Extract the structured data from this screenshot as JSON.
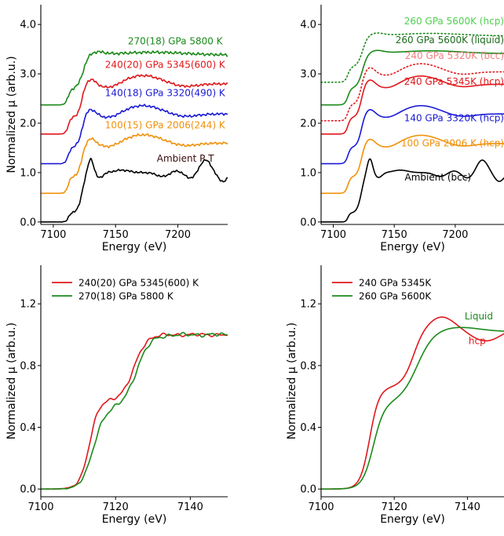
{
  "chart_data": [
    {
      "type": "line",
      "panel": "top-left",
      "xlabel": "Energy (eV)",
      "ylabel": "Normalized μ (arb.u.)",
      "xlim": [
        7090,
        7240
      ],
      "ylim": [
        -0.05,
        4.4
      ],
      "xticks": [
        7100,
        7150,
        7200
      ],
      "yticks": [
        0.0,
        1.0,
        2.0,
        3.0,
        4.0
      ],
      "ytick_labels": [
        "0.0",
        "1.0",
        "2.0",
        "3.0",
        "4.0"
      ],
      "legend": "none",
      "series": [
        {
          "color": "#000000",
          "shape": "ambient",
          "offset": 0.0,
          "amp": 1.0,
          "noise": 0.02,
          "dotted": false
        },
        {
          "color": "#f0900a",
          "shape": "hcp",
          "offset": 0.58,
          "amp": 1.13,
          "noise": 0.025,
          "dotted": false
        },
        {
          "color": "#1a1ad6",
          "shape": "hcp",
          "offset": 1.18,
          "amp": 1.12,
          "noise": 0.025,
          "dotted": false
        },
        {
          "color": "#e0181c",
          "shape": "hcp",
          "offset": 1.78,
          "amp": 1.13,
          "noise": 0.025,
          "dotted": false
        },
        {
          "color": "#1b8a1b",
          "shape": "liquid",
          "offset": 2.37,
          "amp": 1.1,
          "noise": 0.03,
          "dotted": false
        }
      ],
      "annotations": [
        {
          "text": "270(18) GPa 5800 K",
          "x": 7236,
          "y": 3.6,
          "color": "#1b8a1b"
        },
        {
          "text": "240(20) GPa 5345(600) K",
          "x": 7238,
          "y": 3.12,
          "color": "#e0181c"
        },
        {
          "text": "140(18) GPa 3320(490) K",
          "x": 7238,
          "y": 2.55,
          "color": "#1a1ad6"
        },
        {
          "text": "100(15) GPa 2006(244) K",
          "x": 7238,
          "y": 1.9,
          "color": "#f0900a"
        },
        {
          "text": "Ambient P T",
          "x": 7229,
          "y": 1.22,
          "color": "#3a0a0a"
        }
      ]
    },
    {
      "type": "line",
      "panel": "top-right",
      "xlabel": "Energy (eV)",
      "ylabel": "",
      "xlim": [
        7090,
        7240
      ],
      "ylim": [
        -0.05,
        4.4
      ],
      "xticks": [
        7100,
        7150,
        7200
      ],
      "yticks": [
        0.0,
        1.0,
        2.0,
        3.0,
        4.0
      ],
      "ytick_labels": [
        "0.0",
        "1.0",
        "2.0",
        "3.0",
        "4.0"
      ],
      "legend": "none",
      "series": [
        {
          "color": "#000000",
          "shape": "ambient",
          "offset": 0.0,
          "amp": 1.0,
          "noise": 0.0,
          "dotted": false
        },
        {
          "color": "#f0900a",
          "shape": "hcp",
          "offset": 0.58,
          "amp": 1.12,
          "noise": 0.0,
          "dotted": false
        },
        {
          "color": "#1a1ad6",
          "shape": "hcp",
          "offset": 1.18,
          "amp": 1.12,
          "noise": 0.0,
          "dotted": false
        },
        {
          "color": "#e0181c",
          "shape": "hcp",
          "offset": 1.78,
          "amp": 1.12,
          "noise": 0.0,
          "dotted": false
        },
        {
          "color": "#e0181c",
          "shape": "hcp",
          "offset": 2.05,
          "amp": 1.1,
          "noise": 0.0,
          "dotted": true
        },
        {
          "color": "#1b8a1b",
          "shape": "liquid",
          "offset": 2.37,
          "amp": 1.13,
          "noise": 0.0,
          "dotted": false
        },
        {
          "color": "#1b8a1b",
          "shape": "liquid",
          "offset": 2.83,
          "amp": 1.02,
          "noise": 0.0,
          "dotted": true
        }
      ],
      "annotations": [
        {
          "text": "260 GPa 5600K (hcp)",
          "x": 7240,
          "y": 4.0,
          "color": "#4fcf4f"
        },
        {
          "text": "260 GPa 5600K (liquid)",
          "x": 7240,
          "y": 3.62,
          "color": "#1b6b1b"
        },
        {
          "text": "240 GPa 5320K (bcc)",
          "x": 7240,
          "y": 3.3,
          "color": "#f08080"
        },
        {
          "text": "240 GPa 5345K (hcp)",
          "x": 7240,
          "y": 2.78,
          "color": "#e0181c"
        },
        {
          "text": "140 GPa 3320K (hcp)",
          "x": 7240,
          "y": 2.04,
          "color": "#1a1ad6"
        },
        {
          "text": "100 GPa 2006 K (hcp)",
          "x": 7240,
          "y": 1.53,
          "color": "#f0900a"
        },
        {
          "text": "Ambient (bcc)",
          "x": 7213,
          "y": 0.84,
          "color": "#000000"
        }
      ]
    },
    {
      "type": "line",
      "panel": "bottom-left",
      "xlabel": "Energy (eV)",
      "ylabel": "Normalized μ (arb.u.)",
      "xlim": [
        7100,
        7150
      ],
      "ylim": [
        -0.05,
        1.45
      ],
      "xticks": [
        7100,
        7120,
        7140
      ],
      "yticks": [
        0.0,
        0.4,
        0.8,
        1.2
      ],
      "ytick_labels": [
        "0.0",
        "0.4",
        "0.8",
        "1.2"
      ],
      "legend": "top-left",
      "series": [
        {
          "name": "240(20) GPa 5345(600) K",
          "color": "#e0181c",
          "shape": "zoomA",
          "noise": 0.012
        },
        {
          "name": "270(18) GPa 5800 K",
          "color": "#1b8a1b",
          "shape": "zoomB",
          "noise": 0.014
        }
      ],
      "annotations": []
    },
    {
      "type": "line",
      "panel": "bottom-right",
      "xlabel": "Energy (eV)",
      "ylabel": "Normalized μ (arb.u.)",
      "xlim": [
        7100,
        7150
      ],
      "ylim": [
        -0.05,
        1.45
      ],
      "xticks": [
        7100,
        7120,
        7140
      ],
      "yticks": [
        0.0,
        0.4,
        0.8,
        1.2
      ],
      "ytick_labels": [
        "0.0",
        "0.4",
        "0.8",
        "1.2"
      ],
      "legend": "top-left",
      "series": [
        {
          "name": "240 GPa 5345K",
          "color": "#e0181c",
          "shape": "smoothA",
          "noise": 0
        },
        {
          "name": "260 GPa 5600K",
          "color": "#1b8a1b",
          "shape": "smoothB",
          "noise": 0
        }
      ],
      "annotations": [
        {
          "text": "Liquid",
          "x": 7147,
          "y": 1.1,
          "color": "#1b8a1b"
        },
        {
          "text": "hcp",
          "x": 7145,
          "y": 0.94,
          "color": "#e0181c"
        }
      ]
    }
  ]
}
